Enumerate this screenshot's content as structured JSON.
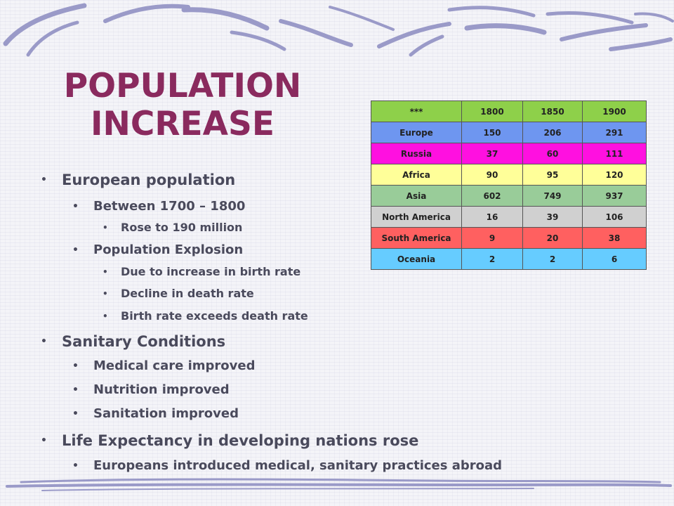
{
  "slide": {
    "title_line1": "POPULATION",
    "title_line2": "INCREASE",
    "colors": {
      "title": "#8a2a5e",
      "text": "#4a4a5c",
      "decoration": "#9a9ac8"
    }
  },
  "bullets": {
    "b1": "European population",
    "b1_1": "Between 1700 – 1800",
    "b1_1_1": "Rose to 190 million",
    "b1_2": "Population Explosion",
    "b1_2_1": "Due to increase in birth rate",
    "b1_2_2": "Decline in death rate",
    "b1_2_3": "Birth rate exceeds death rate",
    "b2": "Sanitary Conditions",
    "b2_1": "Medical care improved",
    "b2_2": "Nutrition improved",
    "b2_3": "Sanitation improved",
    "b3": "Life Expectancy in developing nations rose",
    "b3_1": "Europeans introduced medical, sanitary practices abroad"
  },
  "table": {
    "header": [
      "***",
      "1800",
      "1850",
      "1900"
    ],
    "header_color": "#8ed04a",
    "rows": [
      {
        "region": "Europe",
        "v1800": "150",
        "v1850": "206",
        "v1900": "291",
        "color": "#6e96f0"
      },
      {
        "region": "Russia",
        "v1800": "37",
        "v1850": "60",
        "v1900": "111",
        "color": "#ff10e0"
      },
      {
        "region": "Africa",
        "v1800": "90",
        "v1850": "95",
        "v1900": "120",
        "color": "#ffff99"
      },
      {
        "region": "Asia",
        "v1800": "602",
        "v1850": "749",
        "v1900": "937",
        "color": "#99cc99"
      },
      {
        "region": "North America",
        "v1800": "16",
        "v1850": "39",
        "v1900": "106",
        "color": "#d0d0d0"
      },
      {
        "region": "South America",
        "v1800": "9",
        "v1850": "20",
        "v1900": "38",
        "color": "#ff6060"
      },
      {
        "region": "Oceania",
        "v1800": "2",
        "v1850": "2",
        "v1900": "6",
        "color": "#66ccff"
      }
    ]
  }
}
